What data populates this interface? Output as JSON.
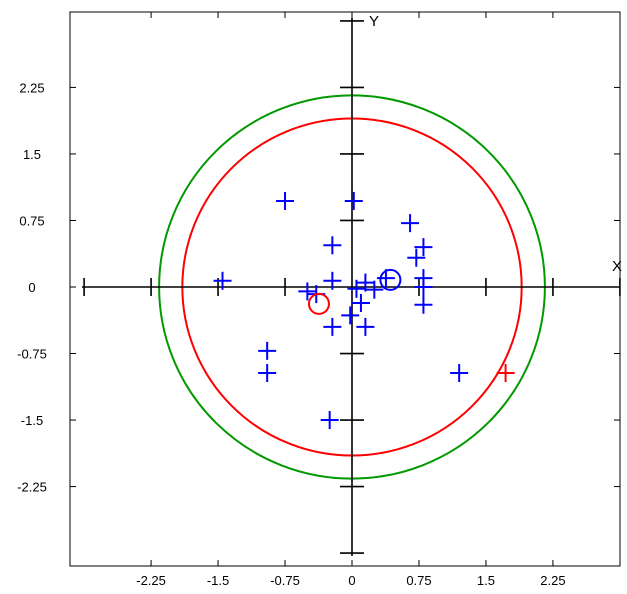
{
  "chart_data": {
    "type": "scatter",
    "title": "",
    "xlabel": "X",
    "ylabel": "Y",
    "xlim": [
      -3.0,
      3.0
    ],
    "ylim": [
      -3.0,
      3.1
    ],
    "grid": false,
    "x_ticks": [
      "-2.25",
      "-1.5",
      "-0.75",
      "0",
      "0.75",
      "1.5",
      "2.25"
    ],
    "y_ticks": [
      "2.25",
      "1.5",
      "0.75",
      "0",
      "-0.75",
      "-1.5",
      "-2.25"
    ],
    "x_tick_values": [
      -2.25,
      -1.5,
      -0.75,
      0,
      0.75,
      1.5,
      2.25
    ],
    "y_tick_values": [
      2.25,
      1.5,
      0.75,
      0,
      -0.75,
      -1.5,
      -2.25
    ],
    "series": [
      {
        "marker": "plus",
        "color": "#0000ff",
        "points": [
          [
            -0.75,
            0.97
          ],
          [
            0.02,
            0.97
          ],
          [
            0.65,
            0.72
          ],
          [
            -0.22,
            0.47
          ],
          [
            0.8,
            0.45
          ],
          [
            0.72,
            0.33
          ],
          [
            -1.45,
            0.07
          ],
          [
            -0.22,
            0.07
          ],
          [
            0.38,
            0.1
          ],
          [
            0.8,
            0.1
          ],
          [
            0.8,
            0.0
          ],
          [
            -0.5,
            -0.05
          ],
          [
            -0.4,
            -0.08
          ],
          [
            0.05,
            -0.02
          ],
          [
            0.15,
            0.05
          ],
          [
            0.25,
            -0.03
          ],
          [
            0.1,
            -0.18
          ],
          [
            0.8,
            -0.2
          ],
          [
            -0.02,
            -0.32
          ],
          [
            0.15,
            -0.45
          ],
          [
            -0.22,
            -0.45
          ],
          [
            -0.95,
            -0.72
          ],
          [
            -0.95,
            -0.97
          ],
          [
            1.2,
            -0.97
          ],
          [
            -0.25,
            -1.5
          ]
        ]
      },
      {
        "marker": "plus",
        "color": "#ff0000",
        "points": [
          [
            1.72,
            -0.97
          ]
        ]
      },
      {
        "marker": "open-circle",
        "color": "#ff0000",
        "points": [
          [
            -0.37,
            -0.19
          ]
        ]
      },
      {
        "marker": "open-circle",
        "color": "#0000ff",
        "points": [
          [
            0.43,
            0.08
          ]
        ]
      }
    ],
    "circles": [
      {
        "center": [
          0,
          0
        ],
        "radius": 2.16,
        "color": "#009900"
      },
      {
        "center": [
          0,
          0
        ],
        "radius": 1.9,
        "color": "#ff0000"
      }
    ]
  }
}
